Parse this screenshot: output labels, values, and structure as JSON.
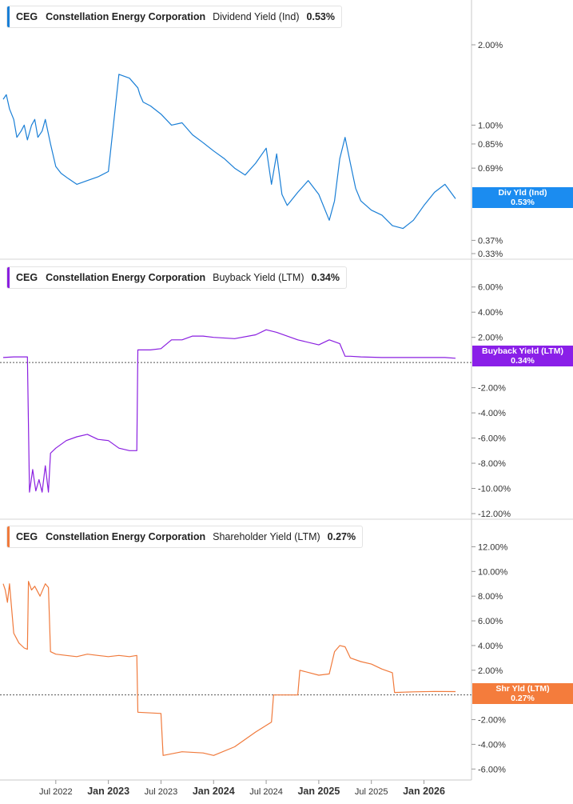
{
  "chart_data": [
    {
      "type": "line",
      "ticker": "CEG",
      "company": "Constellation Energy Corporation",
      "metric": "Dividend Yield (Ind)",
      "current_value": "0.53%",
      "badge_label": "Div Yld (Ind)",
      "badge_value": "0.53%",
      "color": "#1a7fd6",
      "badge_color": "#1b8cf0",
      "y_scale": "log",
      "ylim": [
        0.33,
        2.6
      ],
      "y_ticks": [
        {
          "value": 2.0,
          "label": "2.00%"
        },
        {
          "value": 1.0,
          "label": "1.00%"
        },
        {
          "value": 0.85,
          "label": "0.85%"
        },
        {
          "value": 0.69,
          "label": "0.69%"
        },
        {
          "value": 0.37,
          "label": "0.37%"
        },
        {
          "value": 0.33,
          "label": "0.33%"
        }
      ],
      "x": [
        2022.0,
        2022.03,
        2022.06,
        2022.1,
        2022.13,
        2022.17,
        2022.2,
        2022.23,
        2022.27,
        2022.3,
        2022.33,
        2022.37,
        2022.4,
        2022.45,
        2022.5,
        2022.55,
        2022.62,
        2022.7,
        2022.8,
        2022.9,
        2023.0,
        2023.1,
        2023.2,
        2023.28,
        2023.3,
        2023.33,
        2023.4,
        2023.5,
        2023.6,
        2023.7,
        2023.8,
        2023.9,
        2024.0,
        2024.1,
        2024.2,
        2024.3,
        2024.4,
        2024.5,
        2024.55,
        2024.6,
        2024.65,
        2024.7,
        2024.8,
        2024.9,
        2025.0,
        2025.1,
        2025.15,
        2025.2,
        2025.25,
        2025.3,
        2025.35,
        2025.4,
        2025.5,
        2025.6,
        2025.7,
        2025.8,
        2025.9,
        2026.0,
        2026.1,
        2026.2,
        2026.3
      ],
      "y": [
        1.25,
        1.3,
        1.15,
        1.05,
        0.9,
        0.95,
        1.0,
        0.88,
        1.0,
        1.05,
        0.9,
        0.95,
        1.05,
        0.85,
        0.7,
        0.66,
        0.63,
        0.6,
        0.62,
        0.64,
        0.67,
        1.55,
        1.5,
        1.38,
        1.3,
        1.22,
        1.18,
        1.1,
        1.0,
        1.02,
        0.92,
        0.86,
        0.8,
        0.75,
        0.69,
        0.65,
        0.72,
        0.82,
        0.6,
        0.78,
        0.55,
        0.5,
        0.56,
        0.62,
        0.55,
        0.44,
        0.52,
        0.75,
        0.9,
        0.72,
        0.58,
        0.52,
        0.48,
        0.46,
        0.42,
        0.41,
        0.44,
        0.5,
        0.56,
        0.6,
        0.53
      ]
    },
    {
      "type": "line",
      "ticker": "CEG",
      "company": "Constellation Energy Corporation",
      "metric": "Buyback Yield (LTM)",
      "current_value": "0.34%",
      "badge_label": "Buyback Yield (LTM)",
      "badge_value": "0.34%",
      "color": "#8a1fe0",
      "badge_color": "#8a1fe8",
      "y_scale": "linear",
      "ylim": [
        -12,
        7
      ],
      "zero_line": true,
      "y_ticks": [
        {
          "value": 6,
          "label": "6.00%"
        },
        {
          "value": 4,
          "label": "4.00%"
        },
        {
          "value": 2,
          "label": "2.00%"
        },
        {
          "value": -2,
          "label": "-2.00%"
        },
        {
          "value": -4,
          "label": "-4.00%"
        },
        {
          "value": -6,
          "label": "-6.00%"
        },
        {
          "value": -8,
          "label": "-8.00%"
        },
        {
          "value": -10,
          "label": "-10.00%"
        },
        {
          "value": -12,
          "label": "-12.00%"
        }
      ],
      "x": [
        2022.0,
        2022.1,
        2022.2,
        2022.23,
        2022.25,
        2022.28,
        2022.31,
        2022.34,
        2022.37,
        2022.4,
        2022.43,
        2022.45,
        2022.5,
        2022.6,
        2022.7,
        2022.8,
        2022.9,
        2023.0,
        2023.1,
        2023.2,
        2023.27,
        2023.28,
        2023.4,
        2023.5,
        2023.6,
        2023.7,
        2023.8,
        2023.9,
        2024.0,
        2024.2,
        2024.4,
        2024.5,
        2024.6,
        2024.8,
        2025.0,
        2025.1,
        2025.2,
        2025.25,
        2025.3,
        2025.4,
        2025.6,
        2025.8,
        2026.0,
        2026.2,
        2026.3
      ],
      "y": [
        0.4,
        0.45,
        0.45,
        0.45,
        -10.3,
        -8.5,
        -10.2,
        -9.3,
        -10.3,
        -8.2,
        -10.3,
        -7.2,
        -6.8,
        -6.2,
        -5.9,
        -5.7,
        -6.1,
        -6.2,
        -6.8,
        -7.0,
        -7.0,
        1.0,
        1.0,
        1.1,
        1.8,
        1.8,
        2.1,
        2.1,
        2.0,
        1.9,
        2.2,
        2.6,
        2.4,
        1.8,
        1.4,
        1.8,
        1.5,
        0.5,
        0.5,
        0.45,
        0.4,
        0.4,
        0.4,
        0.4,
        0.34
      ]
    },
    {
      "type": "line",
      "ticker": "CEG",
      "company": "Constellation Energy Corporation",
      "metric": "Shareholder Yield (LTM)",
      "current_value": "0.27%",
      "badge_label": "Shr Yld (LTM)",
      "badge_value": "0.27%",
      "color": "#f07a3c",
      "badge_color": "#f47c3c",
      "y_scale": "linear",
      "ylim": [
        -6.5,
        13
      ],
      "zero_line": true,
      "y_ticks": [
        {
          "value": 12,
          "label": "12.00%"
        },
        {
          "value": 10,
          "label": "10.00%"
        },
        {
          "value": 8,
          "label": "8.00%"
        },
        {
          "value": 6,
          "label": "6.00%"
        },
        {
          "value": 4,
          "label": "4.00%"
        },
        {
          "value": 2,
          "label": "2.00%"
        },
        {
          "value": -2,
          "label": "-2.00%"
        },
        {
          "value": -4,
          "label": "-4.00%"
        },
        {
          "value": -6,
          "label": "-6.00%"
        }
      ],
      "x": [
        2022.0,
        2022.02,
        2022.04,
        2022.06,
        2022.1,
        2022.15,
        2022.2,
        2022.23,
        2022.24,
        2022.27,
        2022.3,
        2022.35,
        2022.4,
        2022.43,
        2022.45,
        2022.5,
        2022.6,
        2022.7,
        2022.8,
        2022.9,
        2023.0,
        2023.1,
        2023.2,
        2023.27,
        2023.28,
        2023.5,
        2023.52,
        2023.7,
        2023.9,
        2024.0,
        2024.2,
        2024.4,
        2024.55,
        2024.57,
        2024.8,
        2024.82,
        2025.0,
        2025.1,
        2025.15,
        2025.2,
        2025.25,
        2025.3,
        2025.4,
        2025.5,
        2025.6,
        2025.7,
        2025.72,
        2025.9,
        2026.1,
        2026.3
      ],
      "y": [
        9.0,
        8.5,
        7.5,
        9.0,
        5.0,
        4.2,
        3.8,
        3.7,
        9.2,
        8.5,
        8.8,
        8.0,
        9.0,
        8.7,
        3.5,
        3.3,
        3.2,
        3.1,
        3.3,
        3.2,
        3.1,
        3.2,
        3.1,
        3.2,
        -1.4,
        -1.5,
        -4.9,
        -4.6,
        -4.7,
        -4.9,
        -4.2,
        -3.0,
        -2.2,
        0.0,
        0.0,
        2.0,
        1.6,
        1.7,
        3.5,
        4.0,
        3.9,
        3.0,
        2.7,
        2.5,
        2.1,
        1.8,
        0.2,
        0.25,
        0.28,
        0.27
      ]
    }
  ],
  "x_axis": {
    "labels": [
      {
        "value": 2022.5,
        "label": "Jul 2022",
        "bold": false
      },
      {
        "value": 2023.0,
        "label": "Jan 2023",
        "bold": true
      },
      {
        "value": 2023.5,
        "label": "Jul 2023",
        "bold": false
      },
      {
        "value": 2024.0,
        "label": "Jan 2024",
        "bold": true
      },
      {
        "value": 2024.5,
        "label": "Jul 2024",
        "bold": false
      },
      {
        "value": 2025.0,
        "label": "Jan 2025",
        "bold": true
      },
      {
        "value": 2025.5,
        "label": "Jul 2025",
        "bold": false
      },
      {
        "value": 2026.0,
        "label": "Jan 2026",
        "bold": true
      }
    ]
  }
}
